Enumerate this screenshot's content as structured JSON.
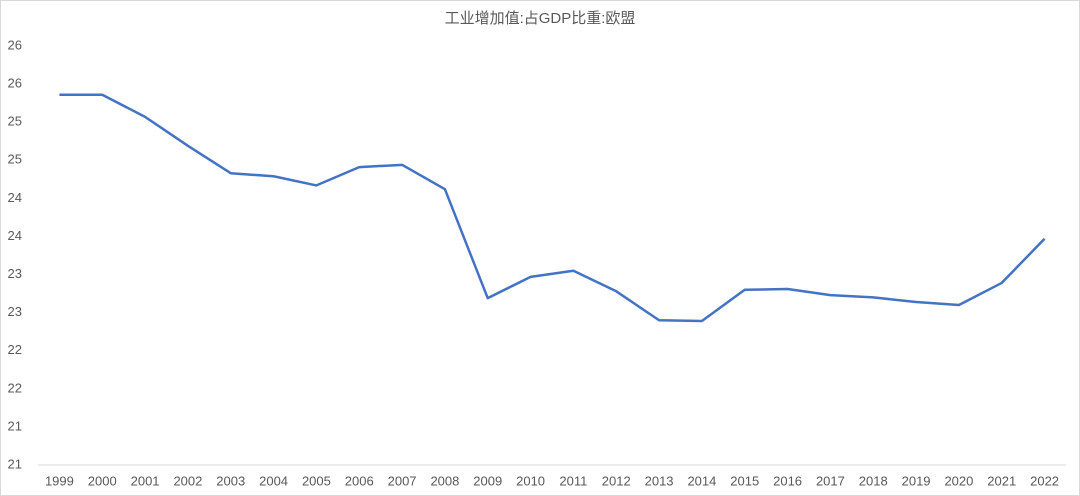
{
  "chart_data": {
    "type": "line",
    "title": "工业增加值:占GDP比重:欧盟",
    "categories": [
      "1999",
      "2000",
      "2001",
      "2002",
      "2003",
      "2004",
      "2005",
      "2006",
      "2007",
      "2008",
      "2009",
      "2010",
      "2011",
      "2012",
      "2013",
      "2014",
      "2015",
      "2016",
      "2017",
      "2018",
      "2019",
      "2020",
      "2021",
      "2022"
    ],
    "series": [
      {
        "color": "#4472c4",
        "values": [
          25.36,
          25.36,
          25.07,
          24.69,
          24.33,
          24.29,
          24.17,
          24.41,
          24.44,
          24.12,
          22.69,
          22.97,
          23.05,
          22.78,
          22.4,
          22.39,
          22.8,
          22.81,
          22.73,
          22.7,
          22.64,
          22.6,
          22.89,
          23.47
        ]
      }
    ],
    "ylim": [
      20.5,
      26
    ],
    "yticks": [
      {
        "value": 20.5,
        "label": "21"
      },
      21,
      {
        "value": 21.5,
        "label": "22"
      },
      22,
      {
        "value": 22.5,
        "label": "23"
      },
      23,
      {
        "value": 23.5,
        "label": "24"
      },
      24,
      {
        "value": 24.5,
        "label": "25"
      },
      25,
      {
        "value": 25.5,
        "label": "26"
      },
      26
    ],
    "grid": false
  }
}
